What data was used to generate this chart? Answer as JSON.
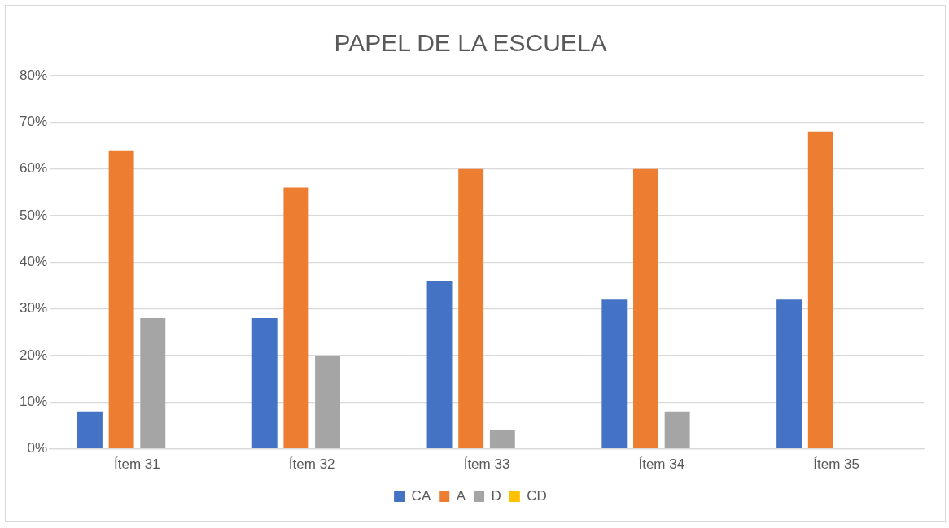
{
  "chart_data": {
    "type": "bar",
    "title": "PAPEL DE LA ESCUELA",
    "categories": [
      "Ítem 31",
      "Ítem 32",
      "Ítem 33",
      "Ítem 34",
      "Ítem 35"
    ],
    "series": [
      {
        "name": "CA",
        "color": "#4472c4",
        "values": [
          8,
          28,
          36,
          32,
          32
        ]
      },
      {
        "name": "A",
        "color": "#ed7d31",
        "values": [
          64,
          56,
          60,
          60,
          68
        ]
      },
      {
        "name": "D",
        "color": "#a5a5a5",
        "values": [
          28,
          20,
          4,
          8,
          0
        ]
      },
      {
        "name": "CD",
        "color": "#ffc000",
        "values": [
          0,
          0,
          0,
          0,
          0
        ]
      }
    ],
    "ylim": [
      0,
      80
    ],
    "yticks": [
      {
        "value": 0,
        "label": "0%"
      },
      {
        "value": 10,
        "label": "10%"
      },
      {
        "value": 20,
        "label": "20%"
      },
      {
        "value": 30,
        "label": "30%"
      },
      {
        "value": 40,
        "label": "40%"
      },
      {
        "value": 50,
        "label": "50%"
      },
      {
        "value": 60,
        "label": "60%"
      },
      {
        "value": 70,
        "label": "70%"
      },
      {
        "value": 80,
        "label": "80%"
      }
    ],
    "grid": "y",
    "legend": "bottom"
  }
}
